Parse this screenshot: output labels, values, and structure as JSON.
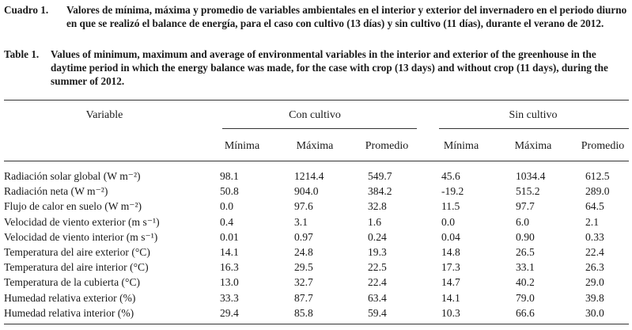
{
  "captions": {
    "es_label": "Cuadro 1.",
    "es_text": "Valores de mínima, máxima y promedio de variables ambientales en el interior y exterior del invernadero en el periodo diurno en que se realizó el balance de energía, para el caso con cultivo (13 días) y sin cultivo (11 días), durante el verano de 2012.",
    "en_label": "Table 1.",
    "en_text": "Values of minimum, maximum and average of environmental variables in the interior and exterior of the greenhouse in the daytime period in which the energy balance was made, for the case with crop (13 days) and without crop (11 days), during the summer of 2012."
  },
  "table": {
    "variable_header": "Variable",
    "group_con": "Con cultivo",
    "group_sin": "Sin cultivo",
    "stat_minima": "Mínima",
    "stat_maxima": "Máxima",
    "stat_promedio": "Promedio",
    "rows": [
      {
        "variable": "Radiación solar global (W m⁻²)",
        "cmin": "98.1",
        "cmax": "1214.4",
        "cavg": "549.7",
        "smin": "45.6",
        "smax": "1034.4",
        "savg": "612.5"
      },
      {
        "variable": "Radiación neta (W m⁻²)",
        "cmin": "50.8",
        "cmax": "904.0",
        "cavg": "384.2",
        "smin": "-19.2",
        "smax": "515.2",
        "savg": "289.0"
      },
      {
        "variable": "Flujo de calor en suelo (W m⁻²)",
        "cmin": "0.0",
        "cmax": "97.6",
        "cavg": "32.8",
        "smin": "11.5",
        "smax": "97.7",
        "savg": "64.5"
      },
      {
        "variable": "Velocidad de viento exterior (m s⁻¹)",
        "cmin": "0.4",
        "cmax": "3.1",
        "cavg": "1.6",
        "smin": "0.0",
        "smax": "6.0",
        "savg": "2.1"
      },
      {
        "variable": "Velocidad de viento interior (m s⁻¹)",
        "cmin": "0.01",
        "cmax": "0.97",
        "cavg": "0.24",
        "smin": "0.04",
        "smax": "0.90",
        "savg": "0.33"
      },
      {
        "variable": "Temperatura del aire exterior (°C)",
        "cmin": "14.1",
        "cmax": "24.8",
        "cavg": "19.3",
        "smin": "14.8",
        "smax": "26.5",
        "savg": "22.4"
      },
      {
        "variable": "Temperatura del aire interior (°C)",
        "cmin": "16.3",
        "cmax": "29.5",
        "cavg": "22.5",
        "smin": "17.3",
        "smax": "33.1",
        "savg": "26.3"
      },
      {
        "variable": "Temperatura de la cubierta (°C)",
        "cmin": "13.0",
        "cmax": "32.7",
        "cavg": "22.4",
        "smin": "14.7",
        "smax": "40.2",
        "savg": "29.0"
      },
      {
        "variable": "Humedad relativa exterior (%)",
        "cmin": "33.3",
        "cmax": "87.7",
        "cavg": "63.4",
        "smin": "14.1",
        "smax": "79.0",
        "savg": "39.8"
      },
      {
        "variable": "Humedad relativa interior (%)",
        "cmin": "29.4",
        "cmax": "85.8",
        "cavg": "59.4",
        "smin": "10.3",
        "smax": "66.6",
        "savg": "30.0"
      }
    ]
  }
}
